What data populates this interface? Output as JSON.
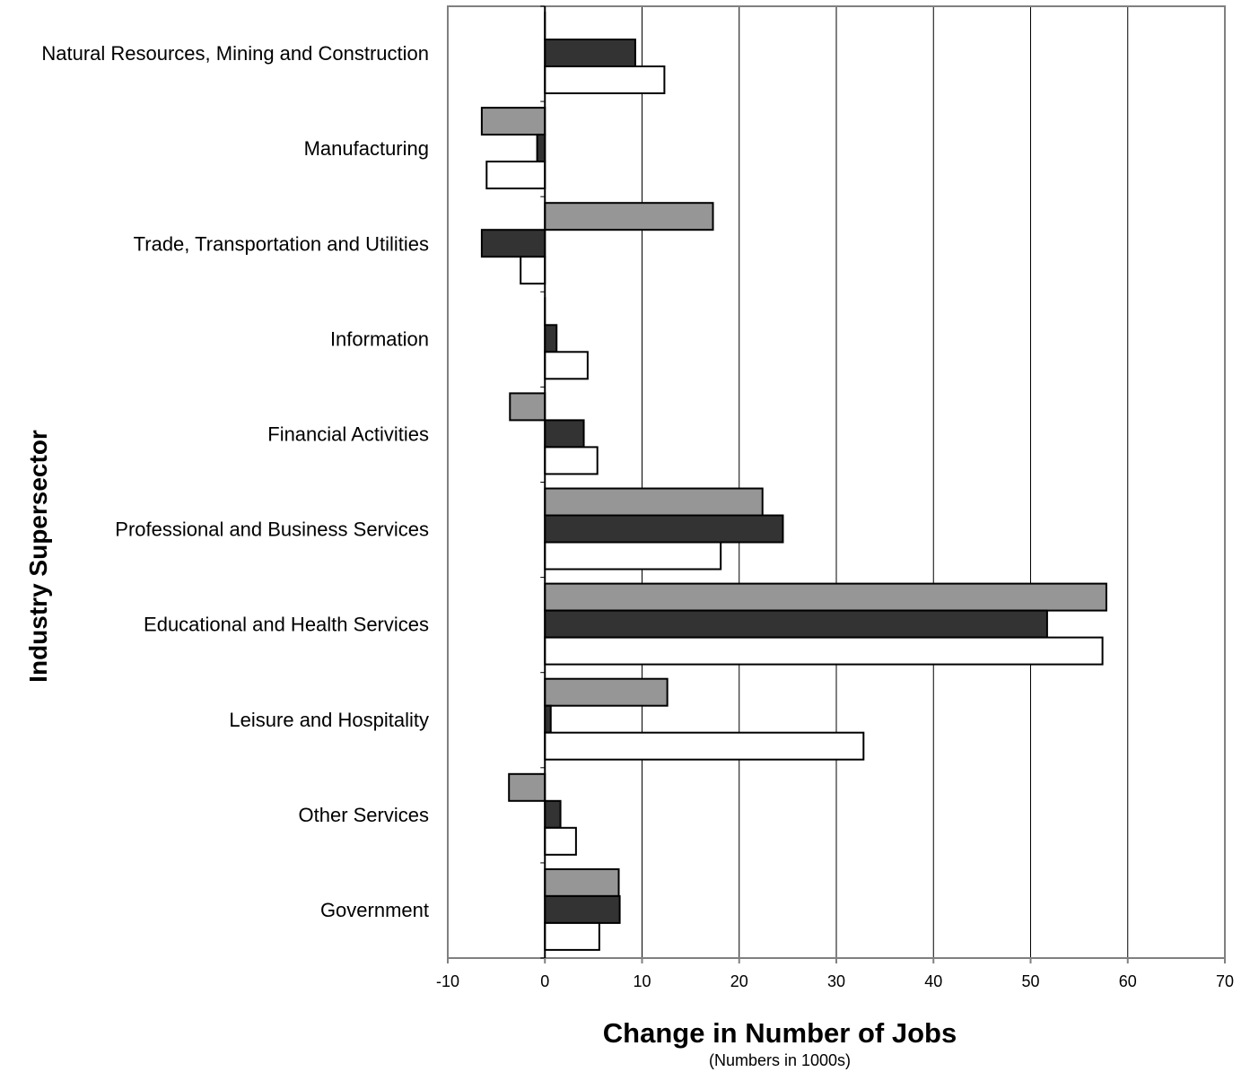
{
  "chart_data": {
    "type": "bar",
    "orientation": "horizontal",
    "categories": [
      "Natural Resources, Mining and Construction",
      "Manufacturing",
      "Trade, Transportation and Utilities",
      "Information",
      "Financial Activities",
      "Professional and Business Services",
      "Educational and Health Services",
      "Leisure and Hospitality",
      "Other Services",
      "Government"
    ],
    "series": [
      {
        "color": "#969696",
        "values": [
          0,
          -6.5,
          17.3,
          0,
          -3.6,
          22.4,
          57.8,
          12.6,
          -3.7,
          7.6
        ]
      },
      {
        "color": "#333333",
        "values": [
          9.3,
          -0.8,
          -6.5,
          1.2,
          4.0,
          24.5,
          51.7,
          0.6,
          1.6,
          7.7
        ]
      },
      {
        "color": "#ffffff",
        "values": [
          12.3,
          -6.0,
          -2.5,
          4.4,
          5.4,
          18.1,
          57.4,
          32.8,
          3.2,
          5.6
        ]
      }
    ],
    "xlim": [
      -10,
      70
    ],
    "xticks": [
      "-10",
      "0",
      "10",
      "20",
      "30",
      "40",
      "50",
      "60",
      "70"
    ],
    "xlabel": "Change in Number of Jobs",
    "xlabel_sub": "(Numbers in 1000s)",
    "ylabel": "Industry Supersector",
    "grid": "vertical",
    "legend": "none"
  }
}
